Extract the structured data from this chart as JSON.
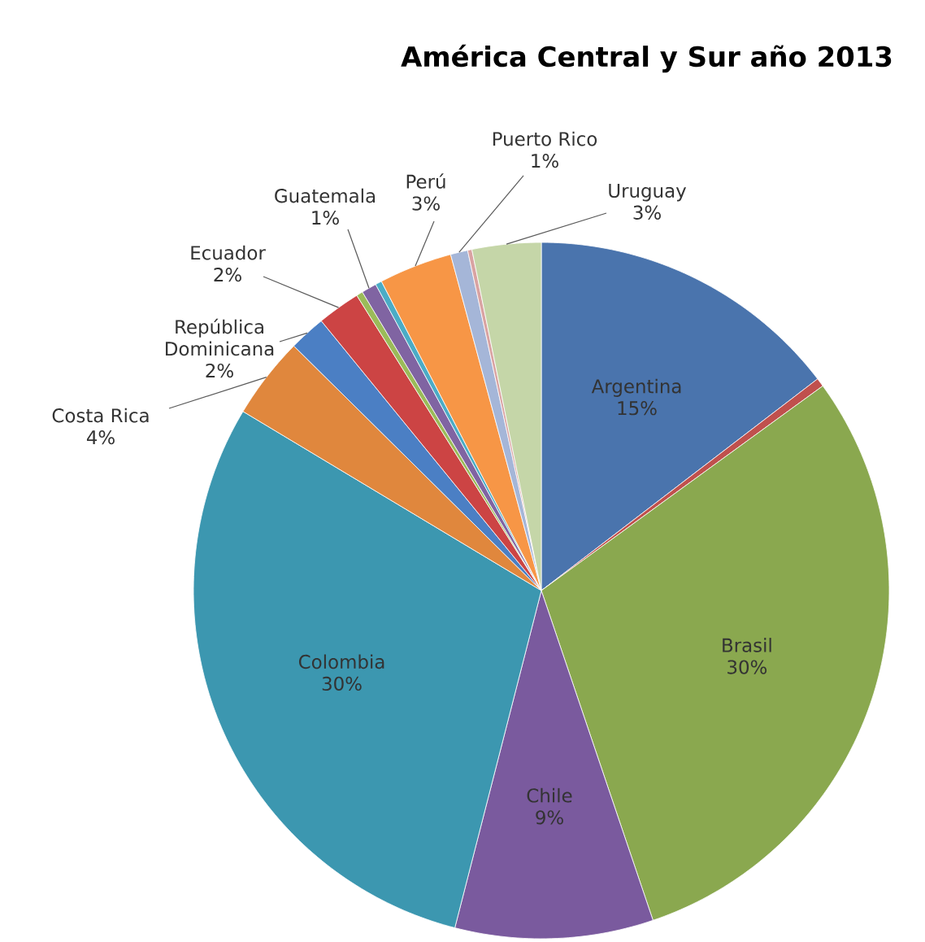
{
  "chart_data": {
    "type": "pie",
    "title": "América Central y Sur año 2013",
    "categories": [
      "Argentina",
      null,
      "Brasil",
      "Chile",
      "Colombia",
      "Costa Rica",
      "República Dominicana",
      "Ecuador",
      null,
      "Guatemala",
      null,
      "Perú",
      "Puerto Rico",
      null,
      "Uruguay"
    ],
    "values": [
      14.6,
      0.4,
      29.8,
      9.2,
      29.6,
      3.8,
      1.7,
      2.0,
      0.3,
      0.7,
      0.3,
      3.4,
      0.8,
      0.2,
      3.2
    ],
    "value_labels": [
      "15%",
      null,
      "30%",
      "9%",
      "30%",
      "4%",
      "2%",
      "2%",
      null,
      "1%",
      null,
      "3%",
      "1%",
      null,
      "3%"
    ],
    "colors": [
      "#4a74ad",
      "#c0504d",
      "#8aa84f",
      "#7a5a9e",
      "#3c97b0",
      "#e0873d",
      "#4b7fc4",
      "#cc4444",
      "#9bbb59",
      "#8064a2",
      "#4bacc6",
      "#f79646",
      "#a5b6d8",
      "#d9a3a2",
      "#c5d6a8"
    ]
  }
}
